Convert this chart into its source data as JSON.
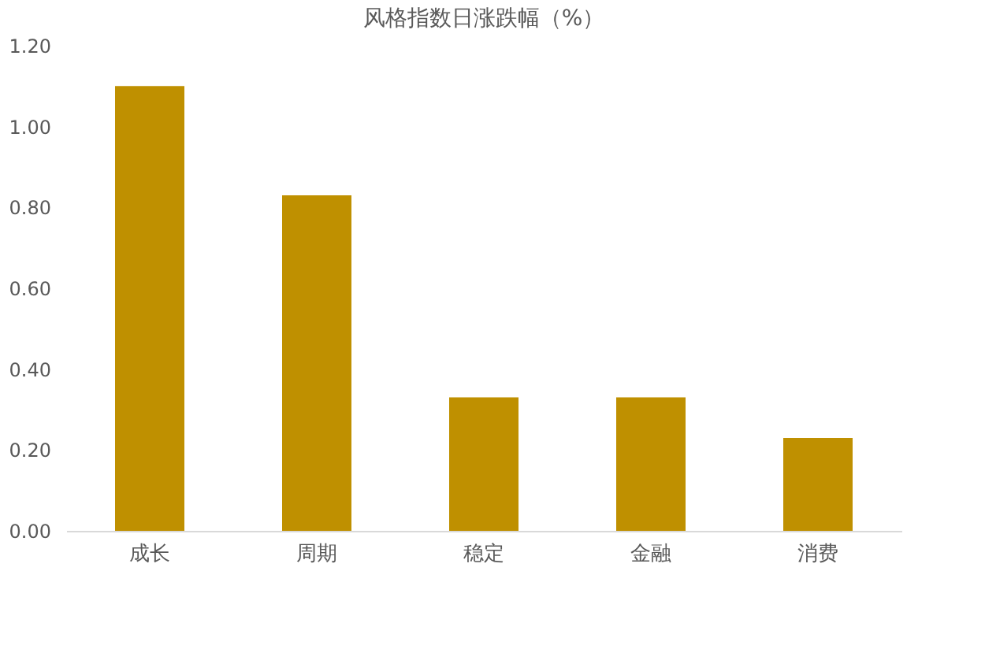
{
  "chart_data": {
    "type": "bar",
    "title": "风格指数日涨跌幅（%）",
    "categories": [
      "成长",
      "周期",
      "稳定",
      "金融",
      "消费"
    ],
    "values": [
      1.1,
      0.83,
      0.33,
      0.33,
      0.23
    ],
    "color": "#bf9000",
    "ylim": [
      0,
      1.2
    ],
    "yticks": [
      {
        "value": 0,
        "label": "0.00"
      },
      {
        "value": 0.2,
        "label": "0.20"
      },
      {
        "value": 0.4,
        "label": "0.40"
      },
      {
        "value": 0.6,
        "label": "0.60"
      },
      {
        "value": 0.8,
        "label": "0.80"
      },
      {
        "value": 1.0,
        "label": "1.00"
      },
      {
        "value": 1.2,
        "label": "1.20"
      }
    ]
  }
}
